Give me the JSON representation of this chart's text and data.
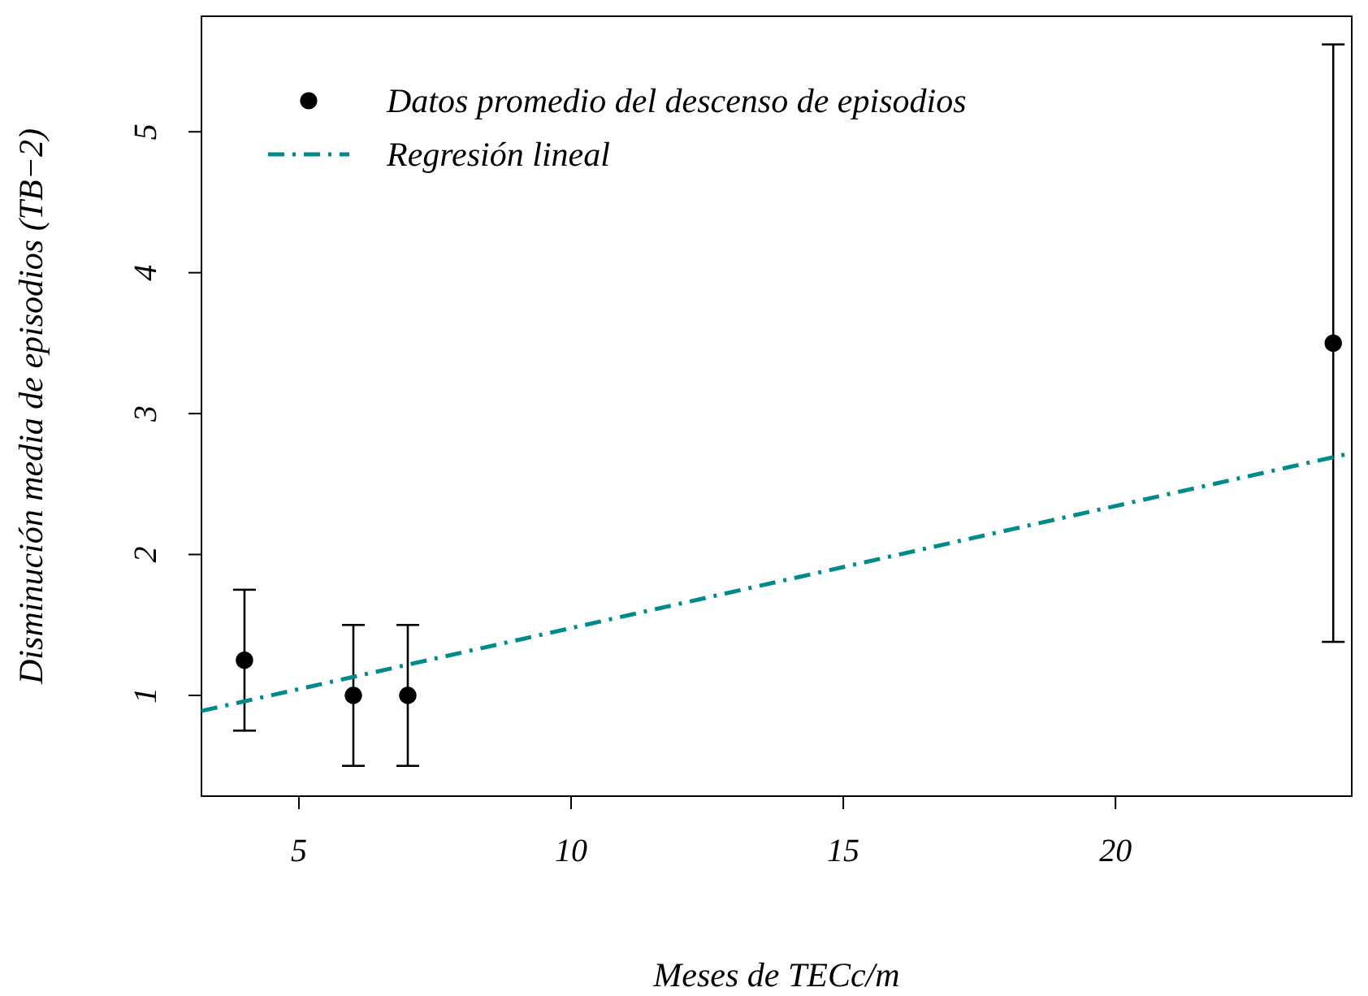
{
  "chart_data": {
    "type": "scatter",
    "xlabel": "Meses de TECc/m",
    "ylabel": "Disminución media de episodios (TB−2)",
    "xlim": [
      3.21,
      24.34
    ],
    "ylim": [
      0.285,
      5.82
    ],
    "xticks": [
      5,
      10,
      15,
      20
    ],
    "yticks": [
      1,
      2,
      3,
      4,
      5
    ],
    "grid": false,
    "legend": "top left",
    "series": [
      {
        "name": "Datos promedio del descenso de episodios",
        "color": "#000000",
        "marker": "circle",
        "x": [
          4,
          6,
          7,
          24
        ],
        "values": [
          1.25,
          1,
          1,
          3.5
        ],
        "errors": [
          [
            0.75,
            1.75
          ],
          [
            0.5,
            1.5
          ],
          [
            0.5,
            1.5
          ],
          [
            1.38,
            5.62
          ]
        ]
      },
      {
        "name": "Regresión lineal",
        "type": "line",
        "color": "#008b8b",
        "line_style": "dashed",
        "x": [
          3.21,
          24.34
        ],
        "values": [
          0.89,
          2.72
        ]
      }
    ]
  }
}
